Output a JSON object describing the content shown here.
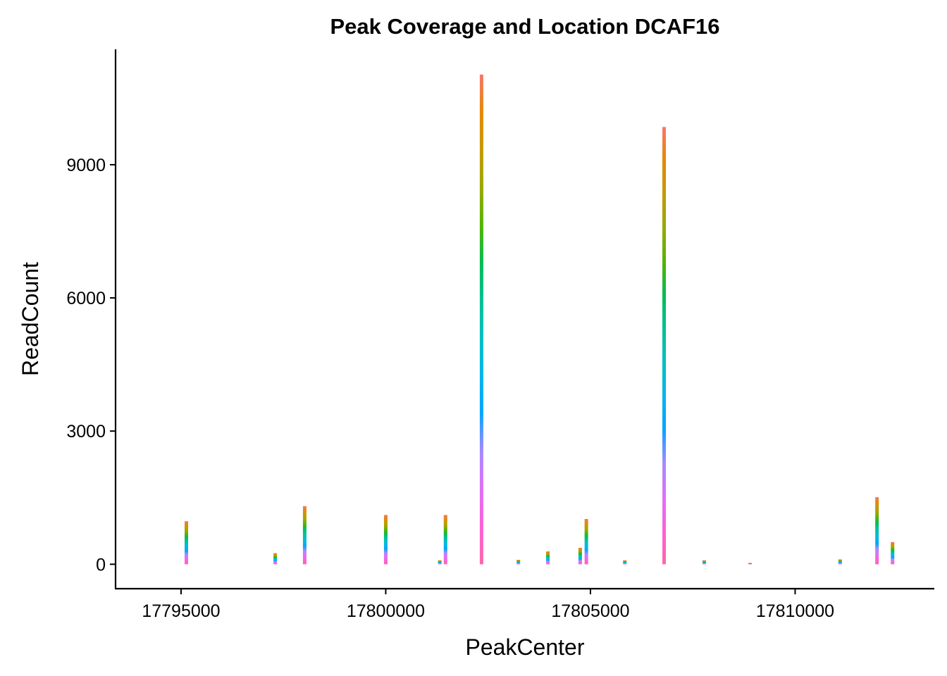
{
  "chart_data": {
    "type": "bar",
    "title": "Peak Coverage and Location DCAF16",
    "xlabel": "PeakCenter",
    "ylabel": "ReadCount",
    "xlim": [
      17793400,
      17813400
    ],
    "ylim": [
      -550,
      11600
    ],
    "x_ticks": [
      17795000,
      17800000,
      17805000,
      17810000
    ],
    "x_tick_labels": [
      "17795000",
      "17800000",
      "17805000",
      "17810000"
    ],
    "y_ticks": [
      0,
      3000,
      6000,
      9000
    ],
    "y_tick_labels": [
      "0",
      "3000",
      "6000",
      "9000"
    ],
    "grid": false,
    "legend": "none",
    "gradient_colors": [
      "#f8766d",
      "#e38900",
      "#c49a00",
      "#99a800",
      "#53b400",
      "#00bc56",
      "#00c094",
      "#00bfc4",
      "#00b6eb",
      "#06a4ff",
      "#a58aff",
      "#df70f8",
      "#fb61d7",
      "#ff66a8"
    ],
    "peaks": [
      {
        "x": 17795130,
        "y": 970
      },
      {
        "x": 17797300,
        "y": 250
      },
      {
        "x": 17798020,
        "y": 1310
      },
      {
        "x": 17800000,
        "y": 1110
      },
      {
        "x": 17801320,
        "y": 90
      },
      {
        "x": 17801460,
        "y": 1110
      },
      {
        "x": 17802340,
        "y": 11030
      },
      {
        "x": 17803240,
        "y": 100
      },
      {
        "x": 17803960,
        "y": 290
      },
      {
        "x": 17804750,
        "y": 370
      },
      {
        "x": 17804900,
        "y": 1020
      },
      {
        "x": 17805840,
        "y": 90
      },
      {
        "x": 17806800,
        "y": 9850
      },
      {
        "x": 17807780,
        "y": 90
      },
      {
        "x": 17808900,
        "y": 30
      },
      {
        "x": 17811100,
        "y": 110
      },
      {
        "x": 17812000,
        "y": 1510
      },
      {
        "x": 17812380,
        "y": 500
      }
    ]
  }
}
